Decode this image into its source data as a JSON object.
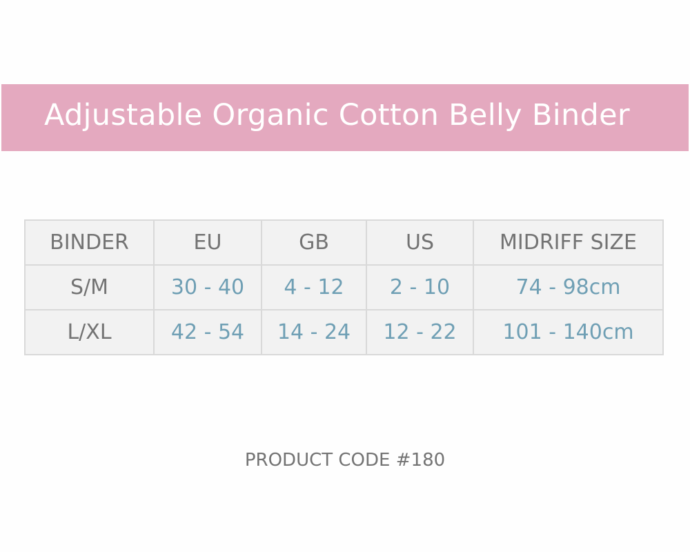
{
  "banner": {
    "title": "Adjustable Organic Cotton Belly Binder",
    "color": "#e4a9bf"
  },
  "table": {
    "headers": [
      "BINDER",
      "EU",
      "GB",
      "US",
      "MIDRIFF SIZE"
    ],
    "rows": [
      [
        "S/M",
        "30 - 40",
        "4 - 12",
        "2 - 10",
        "74 - 98cm"
      ],
      [
        "L/XL",
        "42 - 54",
        "14 - 24",
        "12 - 22",
        "101 - 140cm"
      ]
    ]
  },
  "footer": {
    "product_code": "PRODUCT CODE #180"
  }
}
